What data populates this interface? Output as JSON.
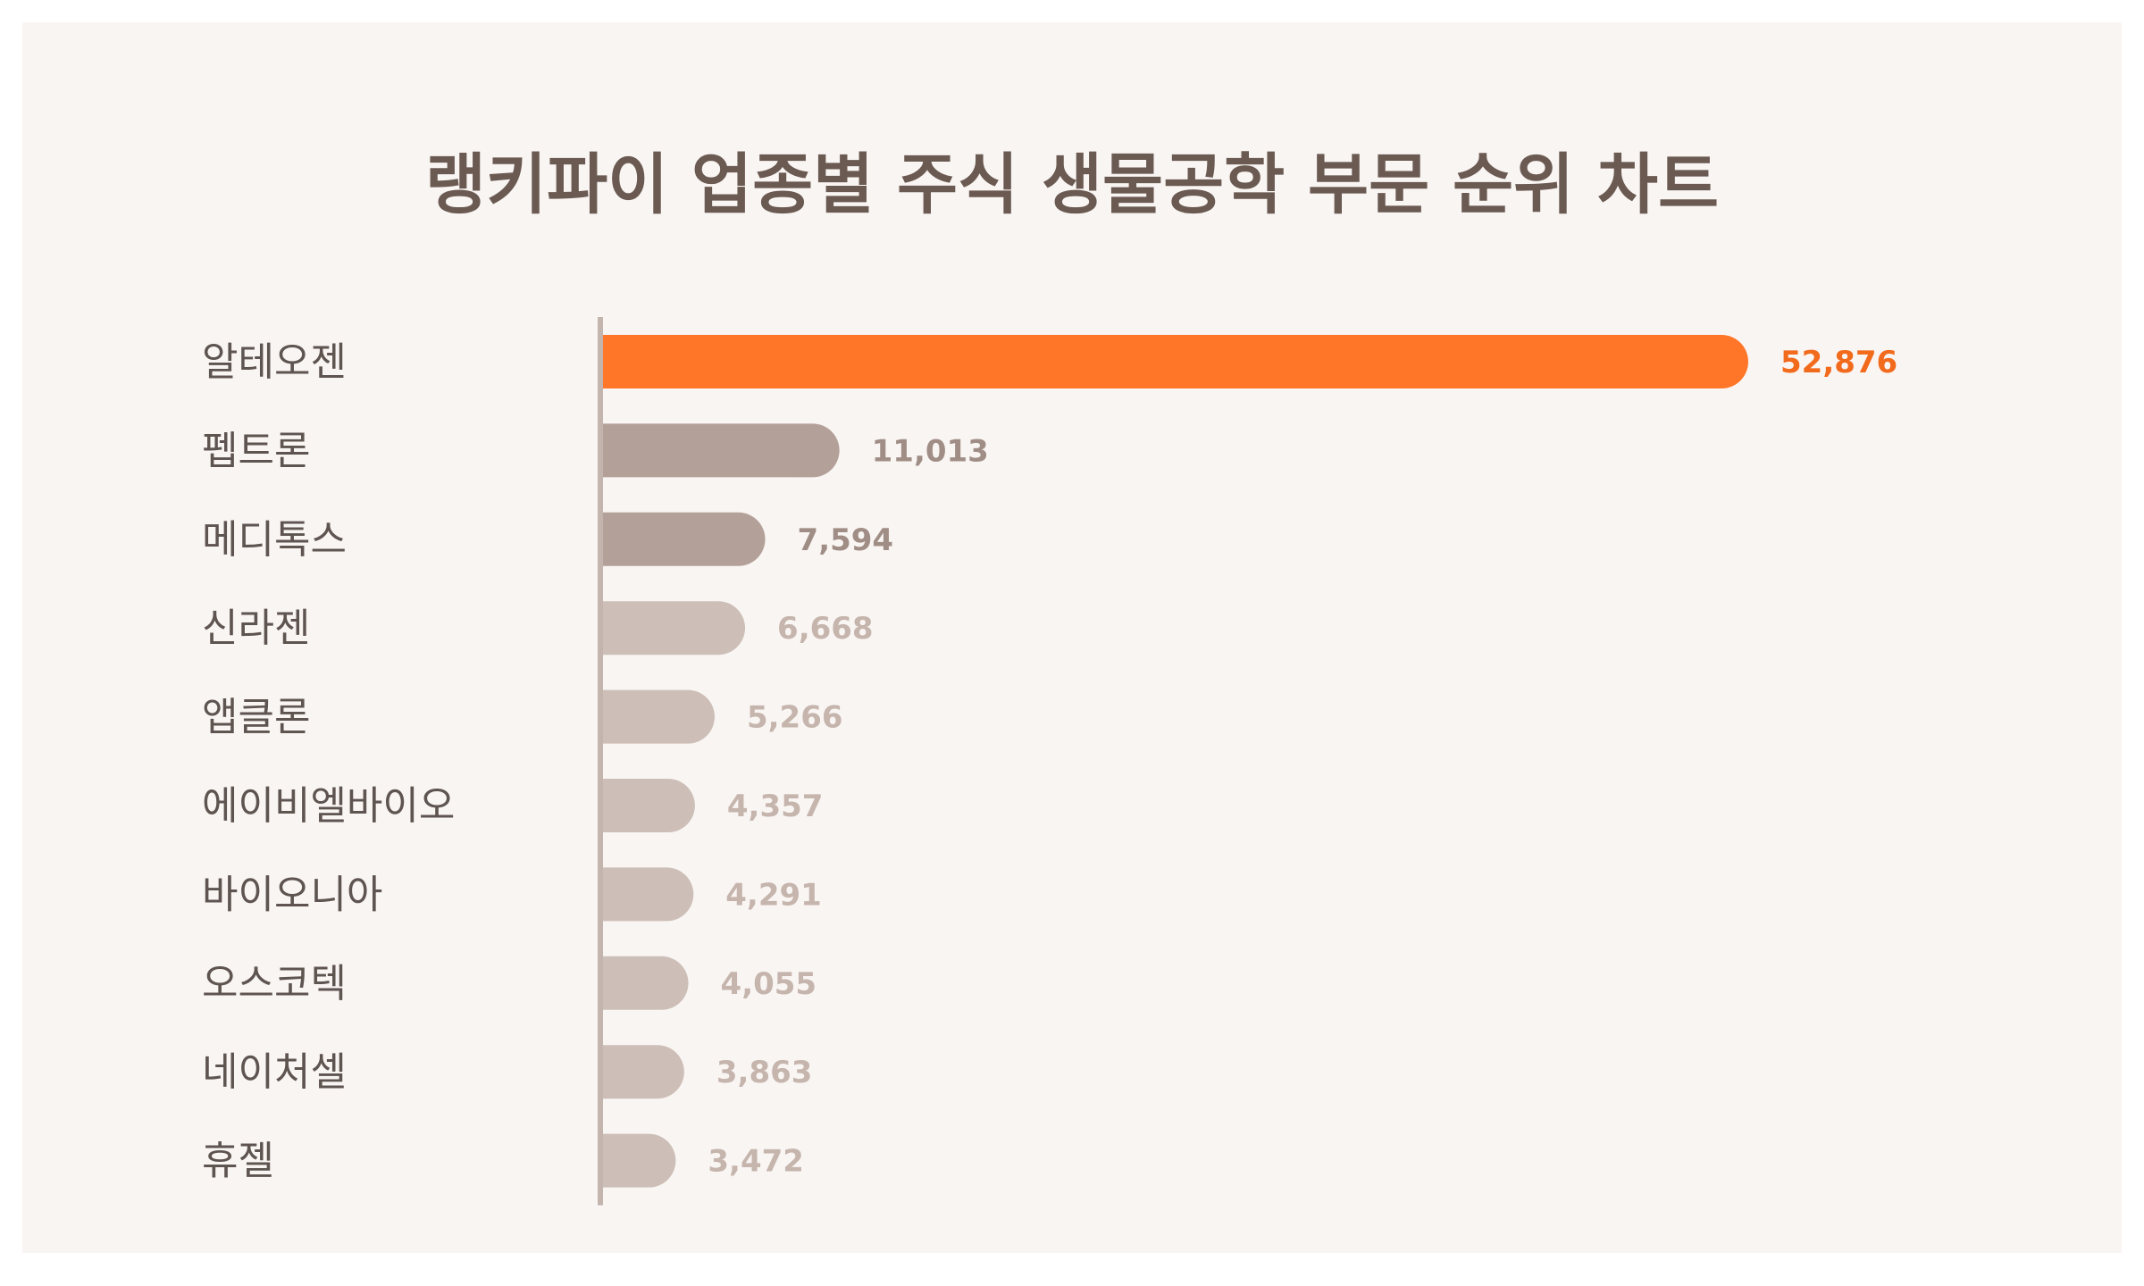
{
  "chart_data": {
    "type": "bar",
    "orientation": "horizontal",
    "title": "랭키파이 업종별 주식 생물공학 부문 순위 차트",
    "categories": [
      "알테오젠",
      "펩트론",
      "메디톡스",
      "신라젠",
      "앱클론",
      "에이비엘바이오",
      "바이오니아",
      "오스코텍",
      "네이처셀",
      "휴젤"
    ],
    "values": [
      52876,
      11013,
      7594,
      6668,
      5266,
      4357,
      4291,
      4055,
      3863,
      3472
    ],
    "value_labels": [
      "52,876",
      "11,013",
      "7,594",
      "6,668",
      "5,266",
      "4,357",
      "4,291",
      "4,055",
      "3,863",
      "3,472"
    ],
    "xlim": [
      0,
      52876
    ],
    "grid": false,
    "legend": "none",
    "colors": {
      "highlight_bar": "#ff7628",
      "highlight_text": "#f26a1b",
      "secondary_bar": "#b3a098",
      "secondary_text": "#a08e86",
      "tertiary_bar": "#cdbfb7",
      "tertiary_text": "#c5b5ad",
      "axis": "#c3b5ad",
      "title": "#6b5a52",
      "category_text": "#5e5450",
      "background": "#f9f5f3"
    },
    "bar_tiers": [
      "highlight",
      "secondary",
      "secondary",
      "tertiary",
      "tertiary",
      "tertiary",
      "tertiary",
      "tertiary",
      "tertiary",
      "tertiary"
    ]
  }
}
